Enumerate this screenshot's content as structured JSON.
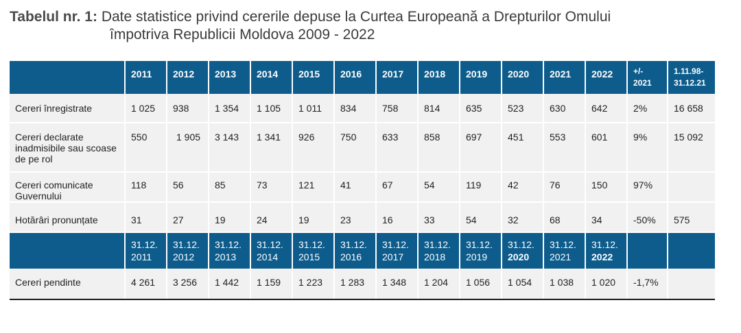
{
  "caption": {
    "label": "Tabelul nr. 1:",
    "line1": "Date statistice privind cererile depuse la Curtea Europeană a Drepturilor Omului",
    "line2": "împotriva Republicii Moldova 2009 - 2022"
  },
  "header": {
    "years": [
      "2011",
      "2012",
      "2013",
      "2014",
      "2015",
      "2016",
      "2017",
      "2018",
      "2019",
      "2020",
      "2021",
      "2022"
    ],
    "change_l1": "+/-",
    "change_l2": "2021",
    "range_l1": "1.11.98-",
    "range_l2": "31.12.21"
  },
  "rows": [
    {
      "label": "Cereri înregistrate",
      "values": [
        "1 025",
        "938",
        "1 354",
        "1 105",
        "1 011",
        "834",
        "758",
        "814",
        "635",
        "523",
        "630",
        "642"
      ],
      "change": "2%",
      "total": "16 658"
    },
    {
      "label": "Cereri declarate inadmisibile sau scoase de pe rol",
      "values": [
        "550",
        "1 905",
        "3 143",
        "1 341",
        "926",
        "750",
        "633",
        "858",
        "697",
        "451",
        "553",
        "601"
      ],
      "change": "9%",
      "total": "15 092"
    },
    {
      "label": "Cereri comunicate Guvernului",
      "values": [
        "118",
        "56",
        "85",
        "73",
        "121",
        "41",
        "67",
        "54",
        "119",
        "42",
        "76",
        "150"
      ],
      "change": "97%",
      "total": ""
    },
    {
      "label": "Hotărâri pronunțate",
      "values": [
        "31",
        "27",
        "19",
        "24",
        "19",
        "23",
        "16",
        "33",
        "54",
        "32",
        "68",
        "34"
      ],
      "change": "-50%",
      "total": "575"
    }
  ],
  "dates_header": {
    "prefix": "31.12.",
    "years": [
      "2011",
      "2012",
      "2013",
      "2014",
      "2015",
      "2016",
      "2017",
      "2018",
      "2019",
      "2020",
      "2021",
      "2022"
    ]
  },
  "pending": {
    "label": "Cereri pendinte",
    "values": [
      "4 261",
      "3 256",
      "1 442",
      "1 159",
      "1 223",
      "1 283",
      "1 348",
      "1 204",
      "1 056",
      "1 054",
      "1 038",
      "1 020"
    ],
    "change": "-1,7%",
    "total": ""
  }
}
